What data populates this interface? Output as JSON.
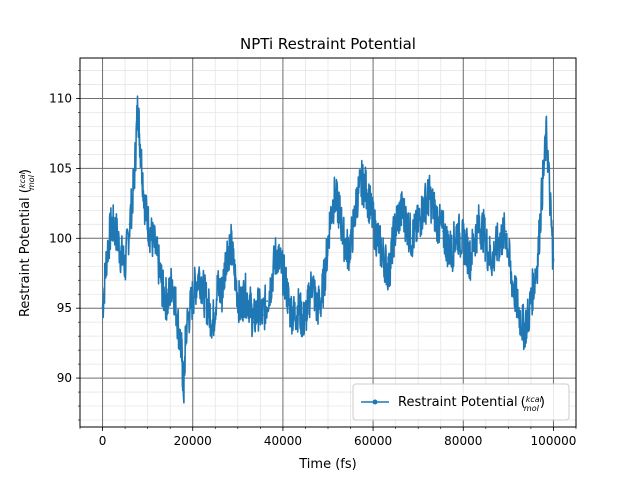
{
  "chart_data": {
    "type": "line",
    "title": "NPTi  Restraint Potential",
    "xlabel": "Time (fs)",
    "ylabel_text": "Restraint Potential (",
    "unit_num": "kcal",
    "unit_den": "mol",
    "unit_close": ")",
    "xlim": [
      -5000,
      105000
    ],
    "ylim": [
      86.5,
      112.9
    ],
    "x_ticks": [
      0,
      20000,
      40000,
      60000,
      80000,
      100000
    ],
    "x_tick_labels": [
      "0",
      "20000",
      "40000",
      "60000",
      "80000",
      "100000"
    ],
    "y_ticks": [
      90,
      95,
      100,
      105,
      110
    ],
    "y_tick_labels": [
      "90",
      "95",
      "100",
      "105",
      "110"
    ],
    "x_minor_step": 5000,
    "y_minor_step": 1,
    "grid": true,
    "legend_position": "lower right",
    "series": [
      {
        "name": "Restraint Potential",
        "color": "#1f77b4",
        "x": [
          0,
          1000,
          2000,
          3000,
          4000,
          5000,
          6000,
          7000,
          7800,
          8500,
          9500,
          10500,
          11500,
          12500,
          13500,
          14500,
          15500,
          16500,
          17500,
          18000,
          18500,
          19500,
          20500,
          21500,
          22500,
          23500,
          24500,
          25500,
          26500,
          27500,
          28500,
          29500,
          30500,
          31500,
          32500,
          33500,
          34500,
          35500,
          36500,
          37500,
          38500,
          39500,
          40500,
          41500,
          42500,
          43500,
          44500,
          45500,
          46500,
          47500,
          48500,
          49500,
          50500,
          51500,
          52500,
          53500,
          54500,
          55500,
          56500,
          57500,
          58500,
          59500,
          60500,
          61500,
          62500,
          63500,
          64500,
          65500,
          66500,
          67500,
          68500,
          69500,
          70500,
          71500,
          72500,
          73500,
          74500,
          75500,
          76500,
          77500,
          78500,
          79500,
          80500,
          81500,
          82500,
          83500,
          84500,
          85500,
          86500,
          87500,
          88500,
          89500,
          90500,
          91500,
          92500,
          93500,
          94500,
          95500,
          96500,
          97500,
          98500,
          99500,
          100000
        ],
        "y": [
          95.0,
          99.0,
          101.0,
          100.5,
          99.0,
          98.0,
          101.0,
          104.0,
          109.5,
          106.0,
          102.0,
          100.5,
          99.5,
          98.0,
          96.0,
          95.5,
          97.0,
          94.5,
          92.0,
          89.0,
          93.5,
          95.0,
          96.5,
          97.5,
          96.0,
          95.0,
          94.0,
          96.5,
          96.0,
          99.0,
          99.5,
          97.0,
          95.0,
          96.0,
          95.5,
          94.0,
          95.0,
          94.5,
          95.5,
          97.0,
          99.0,
          98.0,
          97.0,
          95.0,
          94.5,
          95.0,
          94.0,
          95.0,
          97.0,
          95.0,
          95.5,
          98.0,
          101.5,
          103.0,
          102.0,
          100.0,
          99.0,
          100.5,
          103.0,
          104.0,
          103.5,
          102.0,
          100.5,
          99.5,
          98.5,
          97.5,
          100.0,
          101.5,
          102.0,
          101.0,
          100.0,
          100.5,
          101.5,
          102.5,
          103.0,
          102.0,
          101.0,
          100.5,
          99.5,
          99.0,
          100.5,
          100.0,
          99.5,
          98.5,
          100.0,
          101.0,
          100.5,
          99.0,
          98.5,
          99.5,
          100.0,
          100.5,
          97.5,
          96.0,
          94.5,
          93.5,
          94.5,
          96.5,
          98.5,
          103.5,
          107.5,
          101.0,
          98.5
        ]
      }
    ]
  }
}
